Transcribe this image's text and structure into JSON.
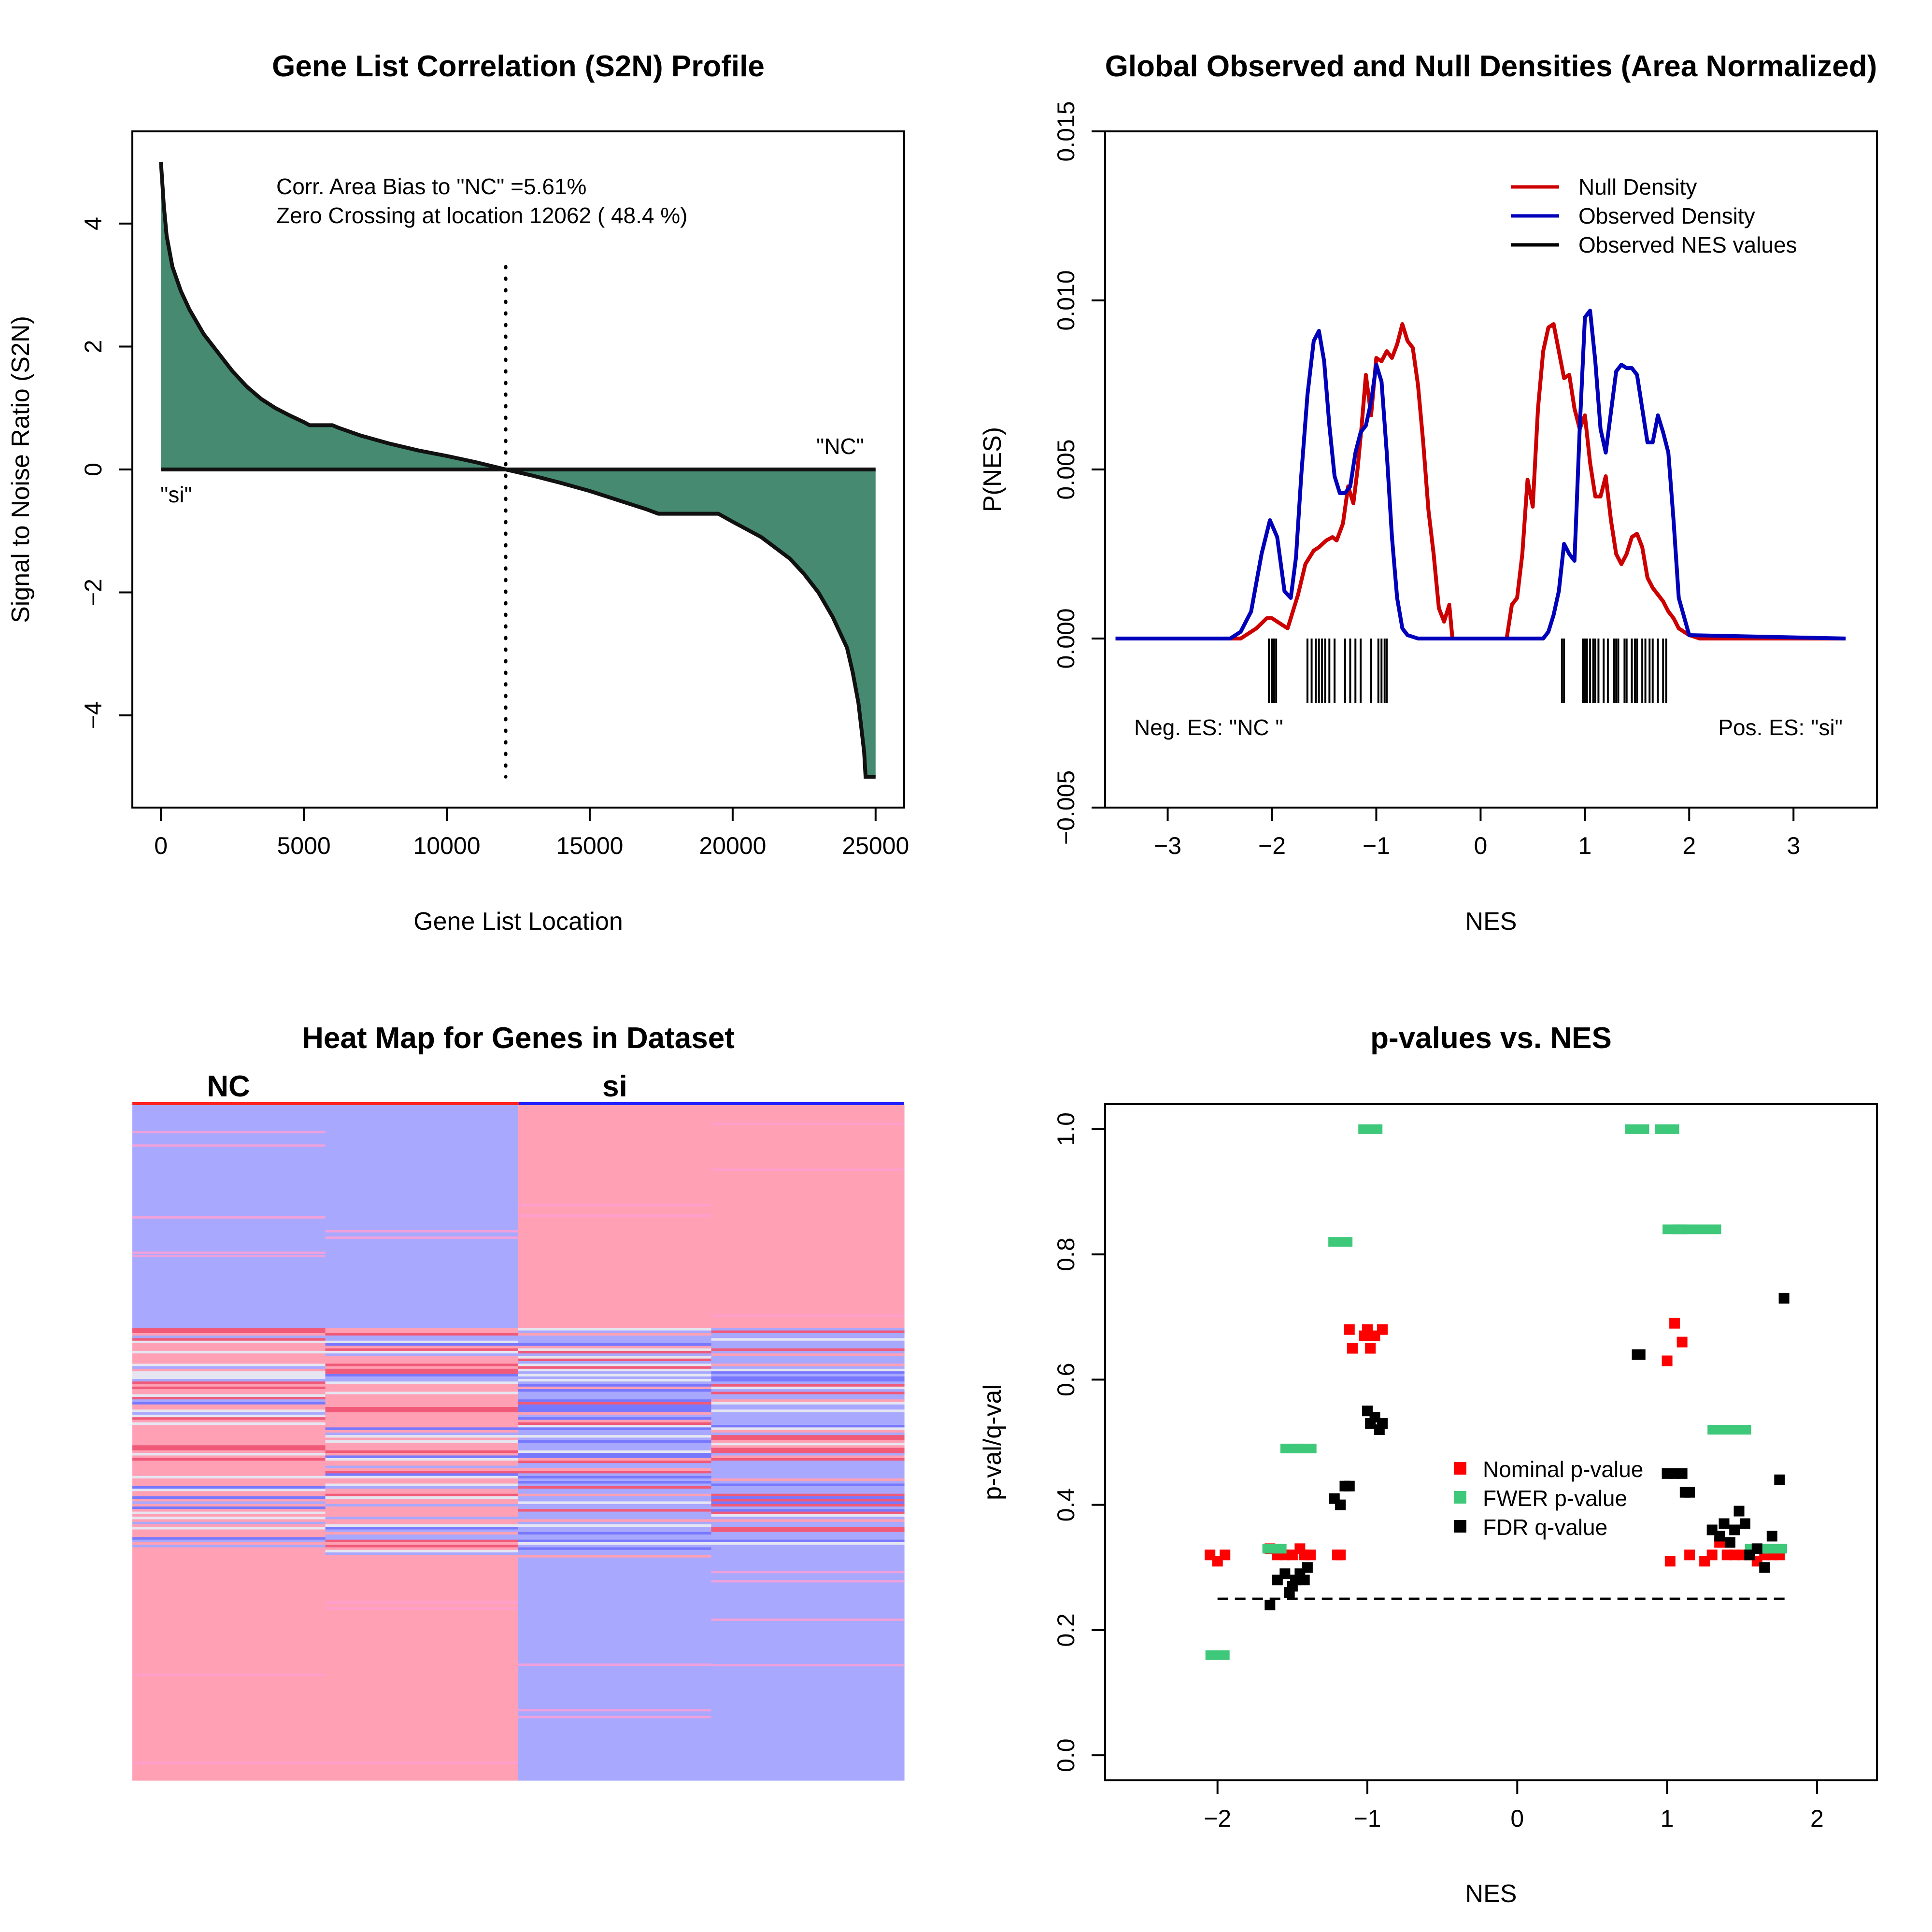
{
  "chart_data": [
    {
      "id": "s2n-profile",
      "type": "area",
      "title": "Gene List Correlation (S2N) Profile",
      "xlabel": "Gene List Location",
      "ylabel": "Signal to Noise Ratio (S2N)",
      "xlim": [
        -1000,
        26000
      ],
      "ylim": [
        -5.5,
        5.5
      ],
      "xticks": [
        "0",
        "5000",
        "10000",
        "15000",
        "20000",
        "25000"
      ],
      "yticks": [
        "-4",
        "-2",
        "0",
        "2",
        "4"
      ],
      "annotations": {
        "line1": "Corr. Area Bias to \"NC\" =5.61%",
        "line2": "Zero Crossing at location  12062  ( 48.4  %)",
        "label_si": "\"si\"",
        "label_nc": "\"NC\""
      },
      "zero_crossing": 12062,
      "fill_color": "#468a72",
      "x": [
        0,
        100,
        200,
        400,
        700,
        1000,
        1500,
        2000,
        2500,
        3000,
        3500,
        4000,
        4500,
        5000,
        5200,
        5500,
        6000,
        6200,
        7000,
        8000,
        9000,
        10000,
        11000,
        12062,
        13000,
        14000,
        15000,
        16000,
        17000,
        17400,
        18000,
        19000,
        19500,
        20000,
        21000,
        22000,
        22500,
        23000,
        23500,
        24000,
        24200,
        24400,
        24500,
        24600,
        24650,
        24700,
        25000
      ],
      "values": [
        5.0,
        4.3,
        3.8,
        3.3,
        2.9,
        2.6,
        2.2,
        1.9,
        1.6,
        1.35,
        1.15,
        1.0,
        0.88,
        0.77,
        0.72,
        0.72,
        0.72,
        0.68,
        0.55,
        0.42,
        0.31,
        0.22,
        0.12,
        0.0,
        -0.1,
        -0.22,
        -0.35,
        -0.5,
        -0.65,
        -0.72,
        -0.72,
        -0.72,
        -0.72,
        -0.85,
        -1.1,
        -1.45,
        -1.7,
        -2.0,
        -2.4,
        -2.9,
        -3.3,
        -3.8,
        -4.2,
        -4.6,
        -5.0,
        -5.0,
        -5.0
      ]
    },
    {
      "id": "nes-densities",
      "type": "line",
      "title": "Global Observed and Null Densities (Area Normalized)",
      "xlabel": "NES",
      "ylabel": "P(NES)",
      "xlim": [
        -3.6,
        3.8
      ],
      "ylim": [
        -0.005,
        0.015
      ],
      "xticks": [
        "-3",
        "-2",
        "-1",
        "0",
        "1",
        "2",
        "3"
      ],
      "yticks": [
        "-0.005",
        "0.000",
        "0.005",
        "0.010",
        "0.015"
      ],
      "neg_label": "Neg. ES: \"NC \"",
      "pos_label": "Pos. ES: \"si\"",
      "legend": [
        {
          "name": "Null Density",
          "color": "#cc0000"
        },
        {
          "name": "Observed Density",
          "color": "#0000bb"
        },
        {
          "name": "Observed NES values",
          "color": "#000000"
        }
      ],
      "series": [
        {
          "name": "Null Density",
          "x": [
            -3.5,
            -2.3,
            -2.15,
            -2.05,
            -2.0,
            -1.95,
            -1.85,
            -1.75,
            -1.68,
            -1.6,
            -1.55,
            -1.48,
            -1.42,
            -1.38,
            -1.32,
            -1.27,
            -1.22,
            -1.18,
            -1.14,
            -1.1,
            -1.05,
            -1.0,
            -0.95,
            -0.9,
            -0.85,
            -0.8,
            -0.75,
            -0.7,
            -0.65,
            -0.6,
            -0.55,
            -0.5,
            -0.45,
            -0.4,
            -0.35,
            -0.3,
            -0.27,
            -0.2,
            0.25,
            0.3,
            0.35,
            0.4,
            0.45,
            0.5,
            0.55,
            0.6,
            0.65,
            0.7,
            0.75,
            0.8,
            0.85,
            0.9,
            0.95,
            1.0,
            1.05,
            1.1,
            1.15,
            1.2,
            1.25,
            1.3,
            1.35,
            1.4,
            1.45,
            1.5,
            1.55,
            1.6,
            1.65,
            1.7,
            1.75,
            1.8,
            1.85,
            1.9,
            1.95,
            2.0,
            2.1,
            2.2,
            3.5
          ],
          "y": [
            0.0,
            0.0,
            0.0003,
            0.0006,
            0.0006,
            0.0005,
            0.0003,
            0.0013,
            0.0022,
            0.0026,
            0.0027,
            0.0029,
            0.003,
            0.0029,
            0.0034,
            0.0045,
            0.004,
            0.005,
            0.0063,
            0.0078,
            0.0066,
            0.0083,
            0.0082,
            0.0085,
            0.0083,
            0.0087,
            0.0093,
            0.0088,
            0.0086,
            0.0075,
            0.0058,
            0.0038,
            0.0025,
            0.0009,
            0.0005,
            0.001,
            0.0,
            0.0,
            0.0,
            0.001,
            0.0012,
            0.0025,
            0.0047,
            0.0039,
            0.0068,
            0.0085,
            0.0092,
            0.0093,
            0.0085,
            0.0077,
            0.0078,
            0.0068,
            0.0062,
            0.0066,
            0.0052,
            0.0042,
            0.0042,
            0.0048,
            0.0035,
            0.0025,
            0.0022,
            0.0025,
            0.003,
            0.0031,
            0.0027,
            0.0018,
            0.0015,
            0.0013,
            0.0011,
            0.0008,
            0.0006,
            0.0003,
            0.0002,
            0.0001,
            0.0,
            0.0,
            0.0
          ]
        },
        {
          "name": "Observed Density",
          "x": [
            -3.5,
            -2.4,
            -2.3,
            -2.2,
            -2.1,
            -2.02,
            -1.95,
            -1.88,
            -1.82,
            -1.77,
            -1.72,
            -1.66,
            -1.6,
            -1.55,
            -1.5,
            -1.45,
            -1.4,
            -1.35,
            -1.3,
            -1.25,
            -1.2,
            -1.15,
            -1.1,
            -1.05,
            -1.0,
            -0.95,
            -0.9,
            -0.85,
            -0.8,
            -0.75,
            -0.7,
            -0.6,
            0.5,
            0.6,
            0.65,
            0.7,
            0.75,
            0.8,
            0.85,
            0.9,
            0.95,
            1.0,
            1.05,
            1.1,
            1.15,
            1.2,
            1.25,
            1.3,
            1.35,
            1.4,
            1.45,
            1.5,
            1.55,
            1.6,
            1.65,
            1.7,
            1.75,
            1.8,
            1.85,
            1.9,
            2.0,
            3.5
          ],
          "y": [
            0.0,
            0.0,
            0.0002,
            0.0008,
            0.0025,
            0.0035,
            0.003,
            0.0014,
            0.0012,
            0.0024,
            0.0048,
            0.0072,
            0.0088,
            0.0091,
            0.0082,
            0.0063,
            0.0048,
            0.0043,
            0.0043,
            0.0045,
            0.0055,
            0.0061,
            0.0063,
            0.007,
            0.0081,
            0.0076,
            0.0055,
            0.003,
            0.0012,
            0.0003,
            0.0001,
            0.0,
            0.0,
            0.0,
            0.0002,
            0.0007,
            0.0014,
            0.0028,
            0.0025,
            0.0023,
            0.0062,
            0.0095,
            0.0097,
            0.0082,
            0.0062,
            0.0055,
            0.0067,
            0.0079,
            0.0081,
            0.008,
            0.008,
            0.0078,
            0.0068,
            0.0058,
            0.0058,
            0.0066,
            0.0061,
            0.0055,
            0.0035,
            0.0012,
            0.0001,
            0.0
          ]
        }
      ],
      "observed_nes_rugs": [
        -2.03,
        -2.0,
        -1.98,
        -1.96,
        -1.66,
        -1.62,
        -1.58,
        -1.55,
        -1.52,
        -1.49,
        -1.45,
        -1.4,
        -1.3,
        -1.25,
        -1.2,
        -1.15,
        -1.05,
        -0.98,
        -0.95,
        -0.92,
        -0.9,
        0.78,
        0.8,
        0.98,
        1.0,
        1.02,
        1.05,
        1.08,
        1.1,
        1.13,
        1.18,
        1.22,
        1.28,
        1.3,
        1.32,
        1.38,
        1.4,
        1.45,
        1.48,
        1.5,
        1.55,
        1.58,
        1.62,
        1.65,
        1.7,
        1.75,
        1.78
      ]
    },
    {
      "id": "heatmap",
      "type": "heatmap",
      "title": "Heat Map for Genes in Dataset",
      "class_labels": [
        "NC",
        "si"
      ],
      "columns": 4,
      "colors": {
        "high": "#ffa0b4",
        "low": "#a8a8ff",
        "mid": "#e6e6f2",
        "strong_red": "#f05a78",
        "strong_blue": "#7878ff"
      },
      "row_blocks": [
        {
          "fraction": 0.33,
          "pattern": [
            "low",
            "low",
            "high",
            "high"
          ]
        },
        {
          "fraction": 0.34,
          "pattern": "mixed"
        },
        {
          "fraction": 0.33,
          "pattern": [
            "high",
            "high",
            "low",
            "low"
          ]
        }
      ]
    },
    {
      "id": "pval-vs-nes",
      "type": "scatter",
      "title": "p-values vs. NES",
      "xlabel": "NES",
      "ylabel": "p-val/q-val",
      "xlim": [
        -2.75,
        2.4
      ],
      "ylim": [
        -0.04,
        1.04
      ],
      "xticks": [
        "-2",
        "-1",
        "0",
        "1",
        "2"
      ],
      "yticks": [
        "0.0",
        "0.2",
        "0.4",
        "0.6",
        "0.8",
        "1.0"
      ],
      "threshold": 0.25,
      "series": [
        {
          "name": "Nominal p-value",
          "color": "#ff0000",
          "points": [
            [
              -2.05,
              0.32
            ],
            [
              -2.0,
              0.31
            ],
            [
              -1.95,
              0.32
            ],
            [
              -1.65,
              0.33
            ],
            [
              -1.6,
              0.32
            ],
            [
              -1.55,
              0.32
            ],
            [
              -1.5,
              0.32
            ],
            [
              -1.45,
              0.33
            ],
            [
              -1.42,
              0.32
            ],
            [
              -1.38,
              0.32
            ],
            [
              -1.2,
              0.32
            ],
            [
              -1.18,
              0.32
            ],
            [
              -1.12,
              0.68
            ],
            [
              -1.1,
              0.65
            ],
            [
              -1.02,
              0.67
            ],
            [
              -1.0,
              0.68
            ],
            [
              -0.98,
              0.65
            ],
            [
              -0.95,
              0.67
            ],
            [
              -0.9,
              0.68
            ],
            [
              1.0,
              0.63
            ],
            [
              1.02,
              0.31
            ],
            [
              1.05,
              0.69
            ],
            [
              1.1,
              0.66
            ],
            [
              1.15,
              0.32
            ],
            [
              1.25,
              0.31
            ],
            [
              1.3,
              0.32
            ],
            [
              1.35,
              0.34
            ],
            [
              1.4,
              0.32
            ],
            [
              1.45,
              0.32
            ],
            [
              1.5,
              0.32
            ],
            [
              1.55,
              0.32
            ],
            [
              1.6,
              0.31
            ],
            [
              1.65,
              0.32
            ],
            [
              1.7,
              0.32
            ],
            [
              1.75,
              0.32
            ]
          ]
        },
        {
          "name": "FWER p-value",
          "color": "#3ec87a",
          "points": [
            [
              -2.0,
              0.16
            ],
            [
              -1.62,
              0.33
            ],
            [
              -1.5,
              0.49
            ],
            [
              -1.42,
              0.49
            ],
            [
              -1.18,
              0.82
            ],
            [
              -0.98,
              1.0
            ],
            [
              0.8,
              1.0
            ],
            [
              1.0,
              1.0
            ],
            [
              1.05,
              0.84
            ],
            [
              1.12,
              0.84
            ],
            [
              1.28,
              0.84
            ],
            [
              1.35,
              0.52
            ],
            [
              1.48,
              0.52
            ],
            [
              1.6,
              0.33
            ],
            [
              1.72,
              0.33
            ]
          ]
        },
        {
          "name": "FDR q-value",
          "color": "#000000",
          "points": [
            [
              -1.65,
              0.24
            ],
            [
              -1.6,
              0.28
            ],
            [
              -1.55,
              0.29
            ],
            [
              -1.52,
              0.26
            ],
            [
              -1.5,
              0.27
            ],
            [
              -1.48,
              0.28
            ],
            [
              -1.45,
              0.29
            ],
            [
              -1.42,
              0.28
            ],
            [
              -1.4,
              0.3
            ],
            [
              -1.22,
              0.41
            ],
            [
              -1.18,
              0.4
            ],
            [
              -1.15,
              0.43
            ],
            [
              -1.12,
              0.43
            ],
            [
              -1.0,
              0.55
            ],
            [
              -0.98,
              0.53
            ],
            [
              -0.95,
              0.54
            ],
            [
              -0.92,
              0.52
            ],
            [
              -0.9,
              0.53
            ],
            [
              0.8,
              0.64
            ],
            [
              0.82,
              0.64
            ],
            [
              1.0,
              0.45
            ],
            [
              1.05,
              0.45
            ],
            [
              1.1,
              0.45
            ],
            [
              1.12,
              0.42
            ],
            [
              1.15,
              0.42
            ],
            [
              1.3,
              0.36
            ],
            [
              1.35,
              0.35
            ],
            [
              1.38,
              0.37
            ],
            [
              1.42,
              0.34
            ],
            [
              1.45,
              0.36
            ],
            [
              1.48,
              0.39
            ],
            [
              1.52,
              0.37
            ],
            [
              1.55,
              0.32
            ],
            [
              1.6,
              0.33
            ],
            [
              1.65,
              0.3
            ],
            [
              1.7,
              0.35
            ],
            [
              1.75,
              0.44
            ],
            [
              1.78,
              0.73
            ]
          ]
        }
      ]
    }
  ]
}
